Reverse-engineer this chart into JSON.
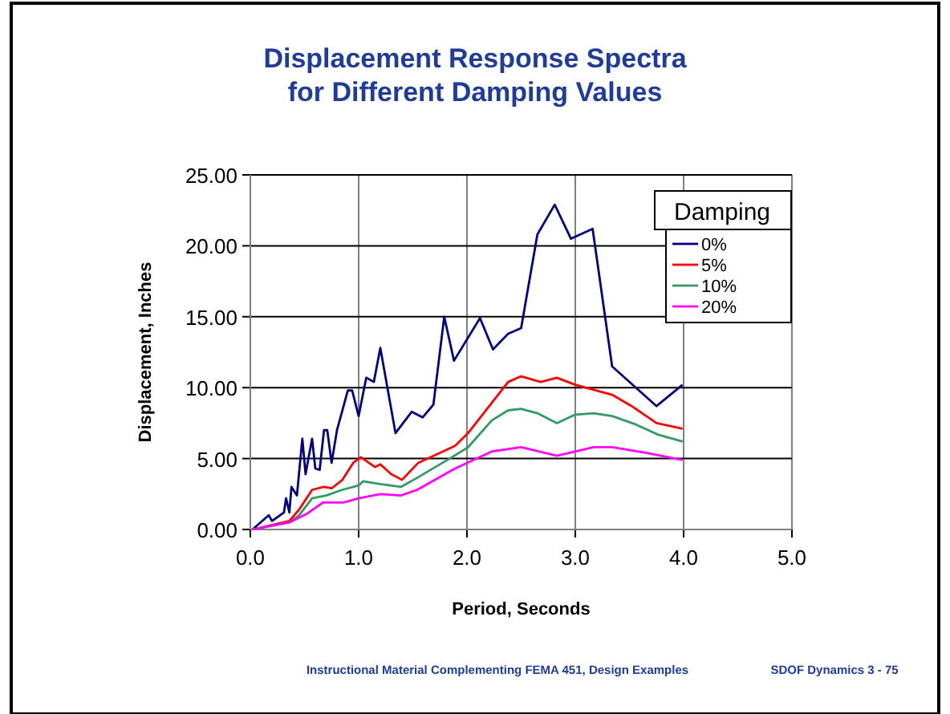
{
  "chart_data": {
    "type": "line",
    "title": "Displacement Response Spectra\nfor Different Damping Values",
    "xlabel": "Period, Seconds",
    "ylabel": "Displacement, Inches",
    "legend_title": "Damping",
    "legend": "top right",
    "grid": true,
    "marker": "none",
    "line_style": "solid",
    "xlim": [
      0,
      5
    ],
    "xticks": [
      {
        "value": 0,
        "label": "0.0"
      },
      {
        "value": 1,
        "label": "1.0"
      },
      {
        "value": 2,
        "label": "2.0"
      },
      {
        "value": 3,
        "label": "3.0"
      },
      {
        "value": 4,
        "label": "4.0"
      },
      {
        "value": 5,
        "label": "5.0"
      }
    ],
    "ylim": [
      0,
      25
    ],
    "yticks": [
      {
        "value": 0,
        "label": "0.00"
      },
      {
        "value": 5,
        "label": "5.00"
      },
      {
        "value": 10,
        "label": "10.00"
      },
      {
        "value": 15,
        "label": "15.00"
      },
      {
        "value": 20,
        "label": "20.00"
      },
      {
        "value": 25,
        "label": "25.00"
      }
    ],
    "series": [
      {
        "name": "0%",
        "color": "#000080",
        "x": [
          0.02,
          0.17,
          0.2,
          0.31,
          0.33,
          0.36,
          0.38,
          0.43,
          0.48,
          0.51,
          0.57,
          0.6,
          0.64,
          0.68,
          0.71,
          0.75,
          0.8,
          0.9,
          0.94,
          1.0,
          1.07,
          1.14,
          1.2,
          1.34,
          1.49,
          1.59,
          1.69,
          1.79,
          1.88,
          2.12,
          2.24,
          2.38,
          2.5,
          2.65,
          2.81,
          2.96,
          3.16,
          3.34,
          3.75,
          3.99
        ],
        "values": [
          0,
          1.0,
          0.6,
          1.2,
          2.2,
          1.2,
          3.0,
          2.4,
          6.4,
          3.9,
          6.4,
          4.3,
          4.2,
          7.0,
          7.0,
          4.7,
          7.0,
          9.8,
          9.8,
          8.0,
          10.7,
          10.4,
          12.8,
          6.8,
          8.3,
          7.9,
          8.8,
          15.0,
          11.9,
          14.9,
          12.7,
          13.8,
          14.2,
          20.8,
          22.9,
          20.5,
          21.2,
          11.5,
          8.7,
          10.2
        ]
      },
      {
        "name": "5%",
        "color": "#ff0000",
        "x": [
          0.02,
          0.36,
          0.45,
          0.57,
          0.68,
          0.75,
          0.85,
          0.95,
          1.02,
          1.15,
          1.2,
          1.3,
          1.4,
          1.55,
          1.89,
          2.01,
          2.38,
          2.5,
          2.68,
          2.83,
          3.0,
          3.34,
          3.52,
          3.75,
          3.99
        ],
        "values": [
          0,
          0.6,
          1.4,
          2.8,
          3.0,
          2.9,
          3.5,
          4.7,
          5.1,
          4.4,
          4.6,
          3.9,
          3.5,
          4.7,
          5.9,
          6.8,
          10.4,
          10.8,
          10.4,
          10.7,
          10.2,
          9.5,
          8.7,
          7.5,
          7.1
        ]
      },
      {
        "name": "10%",
        "color": "#339966",
        "x": [
          0.02,
          0.36,
          0.45,
          0.57,
          0.7,
          0.85,
          1.0,
          1.04,
          1.2,
          1.39,
          1.53,
          1.84,
          2.01,
          2.23,
          2.38,
          2.5,
          2.65,
          2.83,
          3.0,
          3.17,
          3.34,
          3.56,
          3.76,
          3.99
        ],
        "values": [
          0,
          0.5,
          1.0,
          2.2,
          2.4,
          2.8,
          3.1,
          3.4,
          3.2,
          3.0,
          3.6,
          5.0,
          5.8,
          7.7,
          8.4,
          8.5,
          8.2,
          7.5,
          8.1,
          8.2,
          8.0,
          7.4,
          6.7,
          6.2
        ]
      },
      {
        "name": "20%",
        "color": "#ff00ff",
        "x": [
          0.02,
          0.36,
          0.52,
          0.67,
          0.86,
          1.0,
          1.2,
          1.39,
          1.54,
          1.89,
          2.23,
          2.5,
          2.83,
          3.17,
          3.34,
          3.66,
          3.99
        ],
        "values": [
          0,
          0.5,
          1.1,
          1.9,
          1.9,
          2.2,
          2.5,
          2.4,
          2.8,
          4.3,
          5.5,
          5.8,
          5.2,
          5.8,
          5.8,
          5.4,
          4.9
        ]
      }
    ],
    "annotations": [
      "Instructional Material Complementing FEMA 451, Design Examples",
      "SDOF Dynamics 3 - 75"
    ]
  }
}
